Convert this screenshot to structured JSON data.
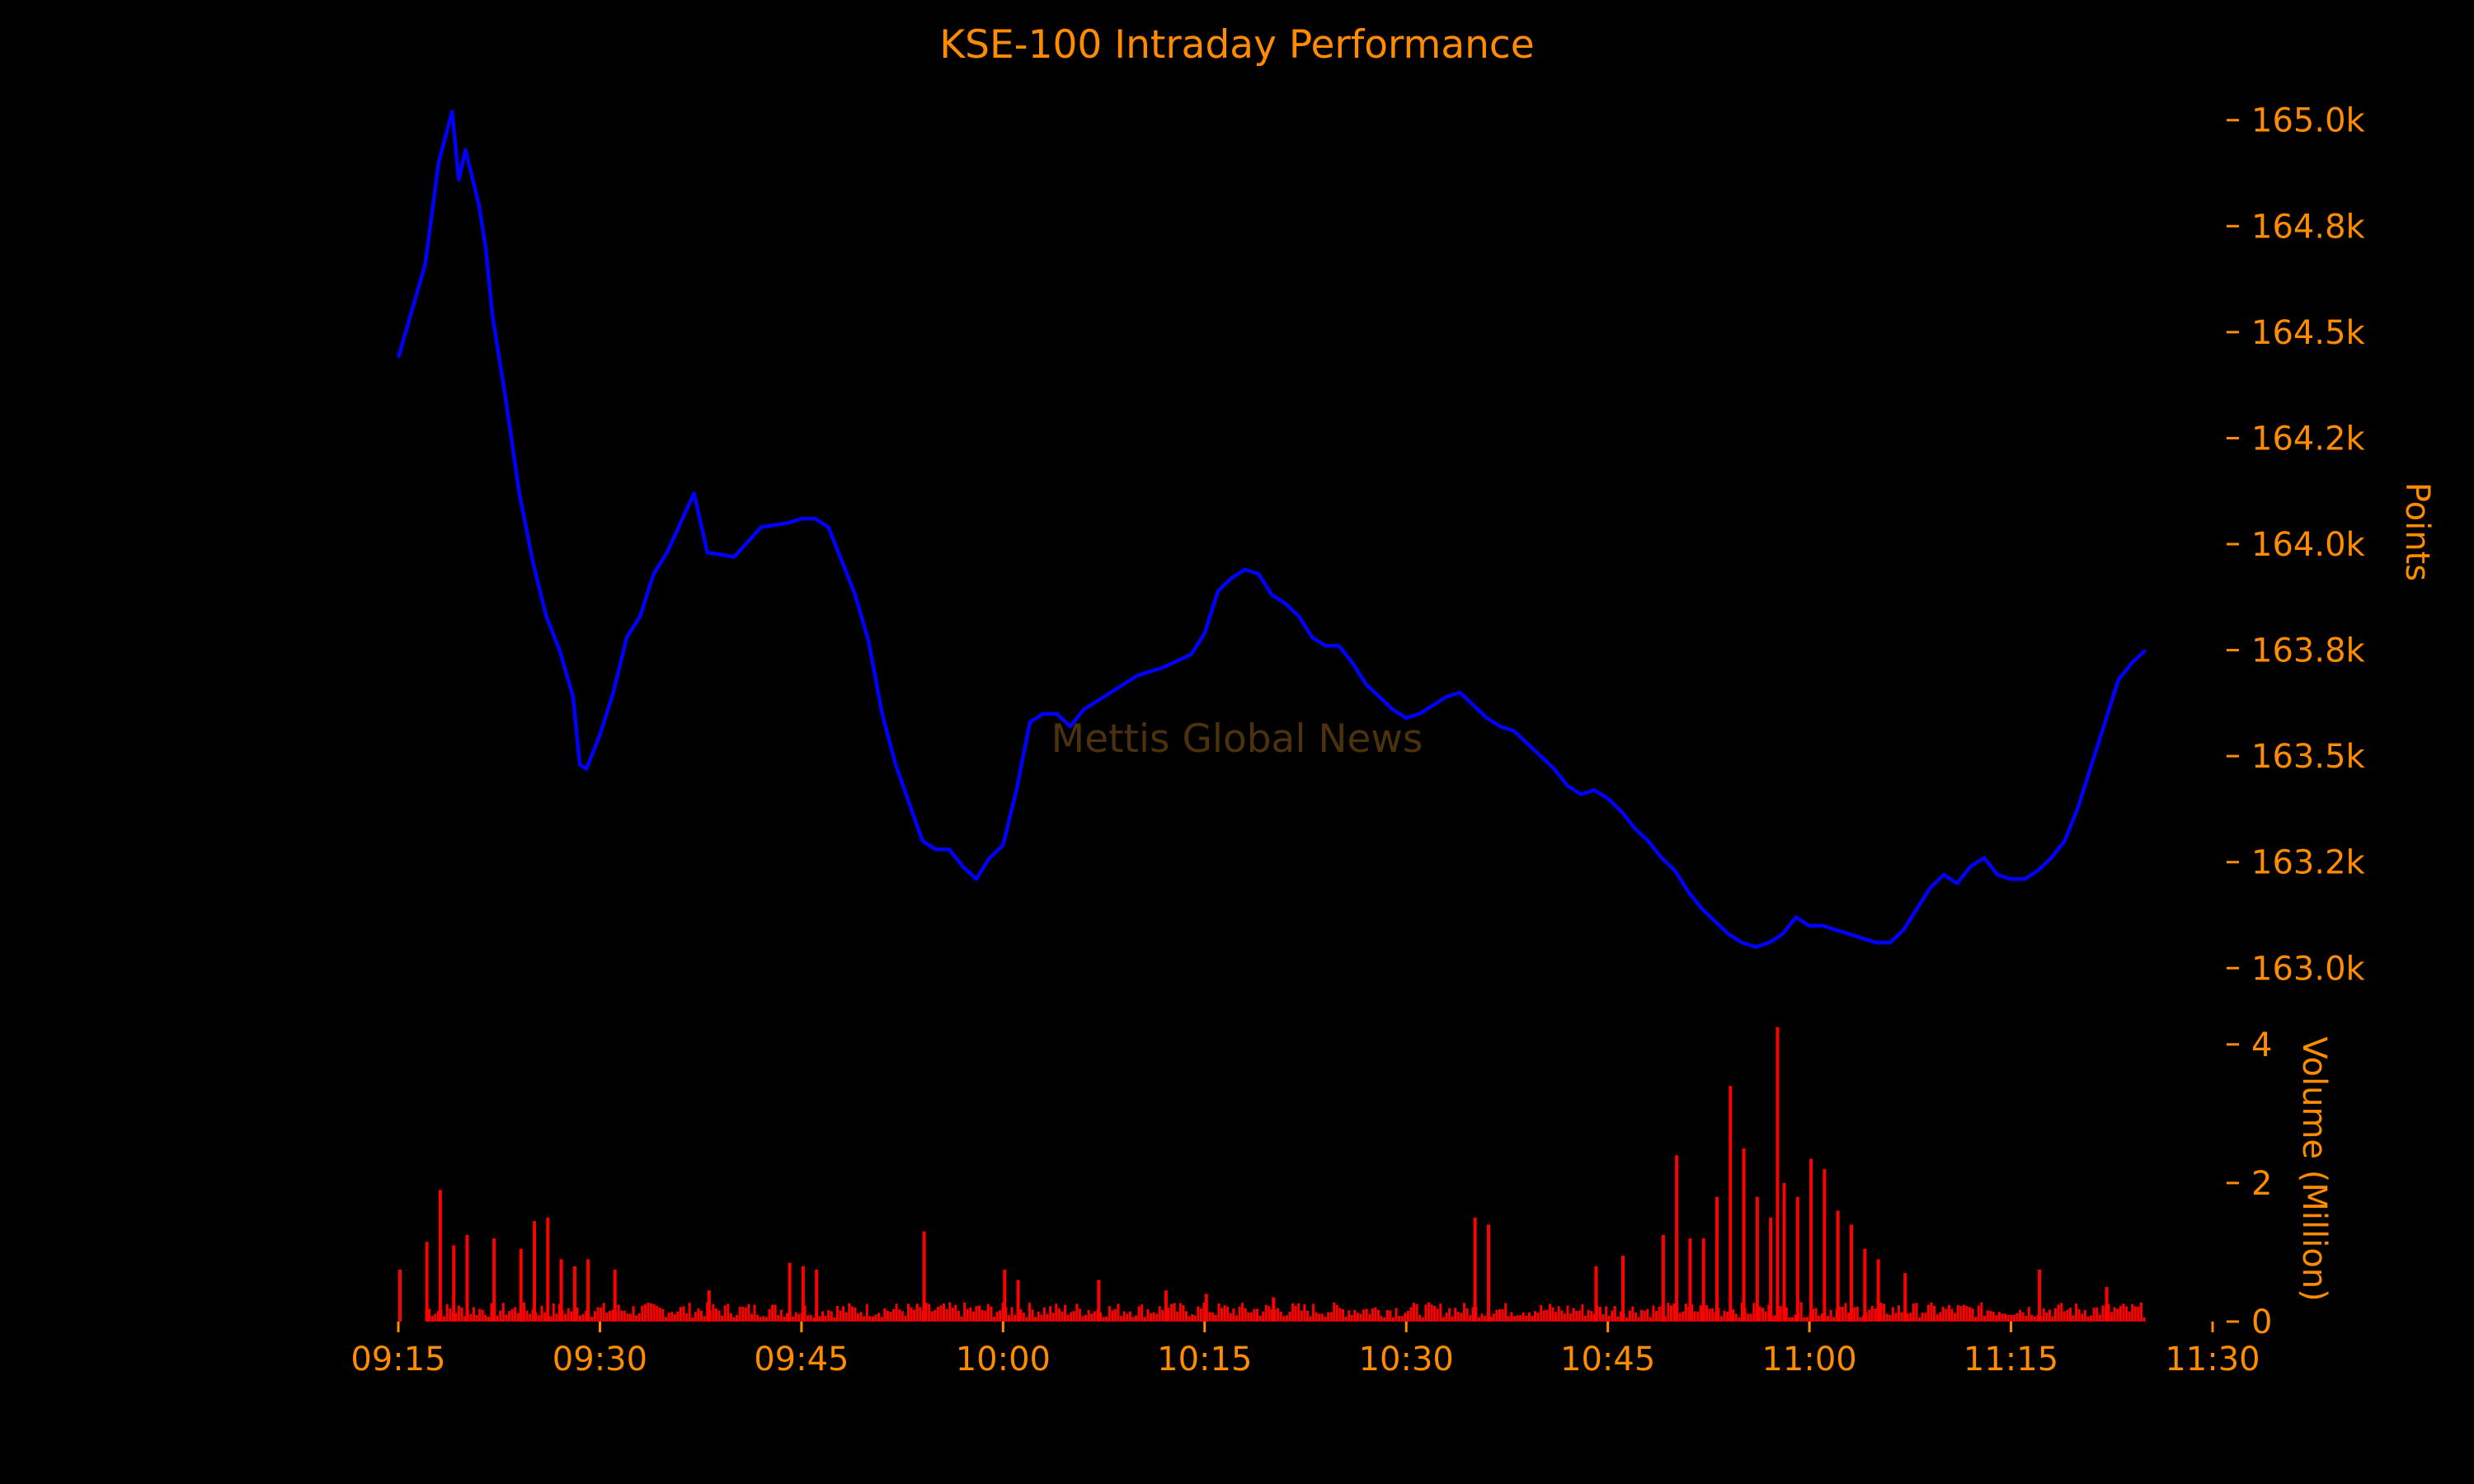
{
  "colors": {
    "background": "#000000",
    "text": "#FF8C00",
    "price_line": "#0000FF",
    "volume_bar": "#FF0000",
    "watermark": "#5A3A10"
  },
  "chart_data": {
    "type": "line",
    "title": "KSE-100 Intraday Performance",
    "watermark": "Mettis Global News",
    "x_axis": {
      "ticks": [
        "09:15",
        "09:30",
        "09:45",
        "10:00",
        "10:15",
        "10:30",
        "10:45",
        "11:00",
        "11:15",
        "11:30"
      ],
      "range": [
        "09:15",
        "11:30"
      ]
    },
    "price_panel": {
      "ylabel": "Points",
      "y_ticks": [
        163000,
        163250,
        163500,
        163750,
        164000,
        164250,
        164500,
        164750,
        165000
      ],
      "y_tick_labels": [
        "163.0k",
        "163.2k",
        "163.5k",
        "163.8k",
        "164.0k",
        "164.2k",
        "164.5k",
        "164.8k",
        "165.0k"
      ],
      "ylim": [
        162950,
        165050
      ],
      "series": [
        {
          "x": [
            "09:15",
            "09:17",
            "09:18",
            "09:19",
            "09:19.5",
            "09:20",
            "09:21",
            "09:21.5",
            "09:22",
            "09:23",
            "09:24",
            "09:25",
            "09:26",
            "09:27",
            "09:28",
            "09:28.5",
            "09:29",
            "09:30",
            "09:31",
            "09:32",
            "09:33",
            "09:34",
            "09:35",
            "09:36",
            "09:37",
            "09:38",
            "09:40",
            "09:42",
            "09:44",
            "09:45",
            "09:46",
            "09:47",
            "09:48",
            "09:49",
            "09:50",
            "09:51",
            "09:52",
            "09:53",
            "09:54",
            "09:55",
            "09:56",
            "09:57",
            "09:58",
            "09:59",
            "10:00",
            "10:01",
            "10:02",
            "10:03",
            "10:04",
            "10:05",
            "10:06",
            "10:08",
            "10:10",
            "10:12",
            "10:14",
            "10:15",
            "10:16",
            "10:17",
            "10:18",
            "10:19",
            "10:20",
            "10:21",
            "10:22",
            "10:23",
            "10:24",
            "10:25",
            "10:26",
            "10:27",
            "10:28",
            "10:29",
            "10:30",
            "10:31",
            "10:32",
            "10:33",
            "10:34",
            "10:35",
            "10:36",
            "10:37",
            "10:38",
            "10:39",
            "10:40",
            "10:41",
            "10:42",
            "10:43",
            "10:44",
            "10:45",
            "10:46",
            "10:47",
            "10:48",
            "10:49",
            "10:50",
            "10:51",
            "10:52",
            "10:53",
            "10:54",
            "10:55",
            "10:56",
            "10:57",
            "10:58",
            "10:59",
            "11:00",
            "11:01",
            "11:02",
            "11:03",
            "11:04",
            "11:05",
            "11:06",
            "11:07",
            "11:08",
            "11:09",
            "11:10",
            "11:11",
            "11:12",
            "11:13",
            "11:14",
            "11:15",
            "11:16",
            "11:17",
            "11:18",
            "11:19",
            "11:20",
            "11:21",
            "11:22",
            "11:23",
            "11:24",
            "11:25"
          ],
          "y": [
            164440,
            164660,
            164900,
            165020,
            164860,
            164930,
            164800,
            164700,
            164540,
            164340,
            164120,
            163960,
            163830,
            163750,
            163640,
            163480,
            163470,
            163550,
            163650,
            163780,
            163830,
            163930,
            163980,
            164050,
            164120,
            163980,
            163970,
            164040,
            164050,
            164060,
            164060,
            164040,
            163960,
            163880,
            163770,
            163600,
            163480,
            163390,
            163300,
            163280,
            163280,
            163240,
            163210,
            163260,
            163290,
            163420,
            163580,
            163600,
            163600,
            163570,
            163610,
            163650,
            163690,
            163710,
            163740,
            163790,
            163890,
            163920,
            163940,
            163930,
            163880,
            163860,
            163830,
            163780,
            163760,
            163760,
            163720,
            163670,
            163640,
            163610,
            163590,
            163600,
            163620,
            163640,
            163650,
            163620,
            163590,
            163570,
            163560,
            163530,
            163500,
            163470,
            163430,
            163410,
            163420,
            163400,
            163370,
            163330,
            163300,
            163260,
            163230,
            163180,
            163140,
            163110,
            163080,
            163060,
            163050,
            163060,
            163080,
            163120,
            163100,
            163100,
            163090,
            163080,
            163070,
            163060,
            163060,
            163090,
            163140,
            163190,
            163220,
            163200,
            163240,
            163260,
            163220,
            163210,
            163210,
            163230,
            163260,
            163300,
            163380,
            163480,
            163580,
            163680,
            163720,
            163750
          ]
        }
      ]
    },
    "volume_panel": {
      "ylabel": "Volume (Million)",
      "y_ticks": [
        0,
        2,
        4
      ],
      "y_tick_labels": [
        "0",
        "2",
        "4"
      ],
      "ylim": [
        0,
        4.2
      ],
      "spikes": {
        "x": [
          "09:15",
          "09:17",
          "09:18",
          "09:19",
          "09:20",
          "09:22",
          "09:24",
          "09:25",
          "09:26",
          "09:27",
          "09:28",
          "09:29",
          "09:31",
          "09:38",
          "09:44",
          "09:45",
          "09:46",
          "09:54",
          "10:00",
          "10:01",
          "10:07",
          "10:12",
          "10:15",
          "10:20",
          "10:35",
          "10:36",
          "10:44",
          "10:46",
          "10:49",
          "10:50",
          "10:51",
          "10:52",
          "10:53",
          "10:54",
          "10:55",
          "10:56",
          "10:57",
          "10:57.5",
          "10:58",
          "10:59",
          "11:00",
          "11:01",
          "11:02",
          "11:03",
          "11:04",
          "11:05",
          "11:07",
          "11:17",
          "11:22"
        ],
        "y": [
          0.75,
          1.15,
          1.9,
          1.1,
          1.25,
          1.2,
          1.05,
          1.45,
          1.5,
          0.9,
          0.8,
          0.9,
          0.75,
          0.45,
          0.85,
          0.8,
          0.75,
          1.3,
          0.75,
          0.6,
          0.6,
          0.45,
          0.4,
          0.35,
          1.5,
          1.4,
          0.8,
          0.95,
          1.25,
          2.4,
          1.2,
          1.2,
          1.8,
          3.4,
          2.5,
          1.8,
          1.5,
          4.25,
          2.0,
          1.8,
          2.35,
          2.2,
          1.6,
          1.4,
          1.05,
          0.9,
          0.7,
          0.75,
          0.5
        ]
      }
    }
  }
}
